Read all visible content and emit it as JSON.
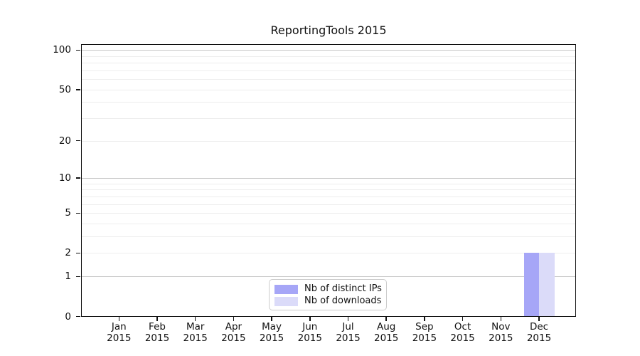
{
  "title": "ReportingTools 2015",
  "year": "2015",
  "legend": {
    "items": [
      {
        "label": "Nb of distinct IPs",
        "color": "#a6a6f7"
      },
      {
        "label": "Nb of downloads",
        "color": "#dbdbf9"
      }
    ]
  },
  "chart_data": {
    "type": "bar",
    "title": "ReportingTools 2015",
    "categories": [
      "Jan",
      "Feb",
      "Mar",
      "Apr",
      "May",
      "Jun",
      "Jul",
      "Aug",
      "Sep",
      "Oct",
      "Nov",
      "Dec"
    ],
    "x_tick_year": "2015",
    "series": [
      {
        "name": "Nb of distinct IPs",
        "color": "#a6a6f7",
        "values": [
          0,
          0,
          0,
          0,
          0,
          0,
          0,
          0,
          0,
          0,
          0,
          2
        ]
      },
      {
        "name": "Nb of downloads",
        "color": "#dbdbf9",
        "values": [
          0,
          0,
          0,
          0,
          0,
          0,
          0,
          0,
          0,
          0,
          0,
          2
        ]
      }
    ],
    "xlabel": "",
    "ylabel": "",
    "yscale": "log1p",
    "ylim": [
      0,
      111
    ],
    "yticks": [
      0,
      1,
      2,
      5,
      10,
      20,
      50,
      100
    ],
    "major_gridlines": [
      1,
      10,
      100
    ],
    "minor_gridlines": [
      2,
      3,
      4,
      5,
      6,
      7,
      8,
      9,
      20,
      30,
      40,
      50,
      60,
      70,
      80,
      90
    ],
    "grid": "horizontal",
    "legend_position": "lower-center-inside",
    "colors": {
      "spine": "#111111",
      "major_grid": "#c7c7c7",
      "minor_grid": "#ededed",
      "background": "#ffffff"
    }
  }
}
